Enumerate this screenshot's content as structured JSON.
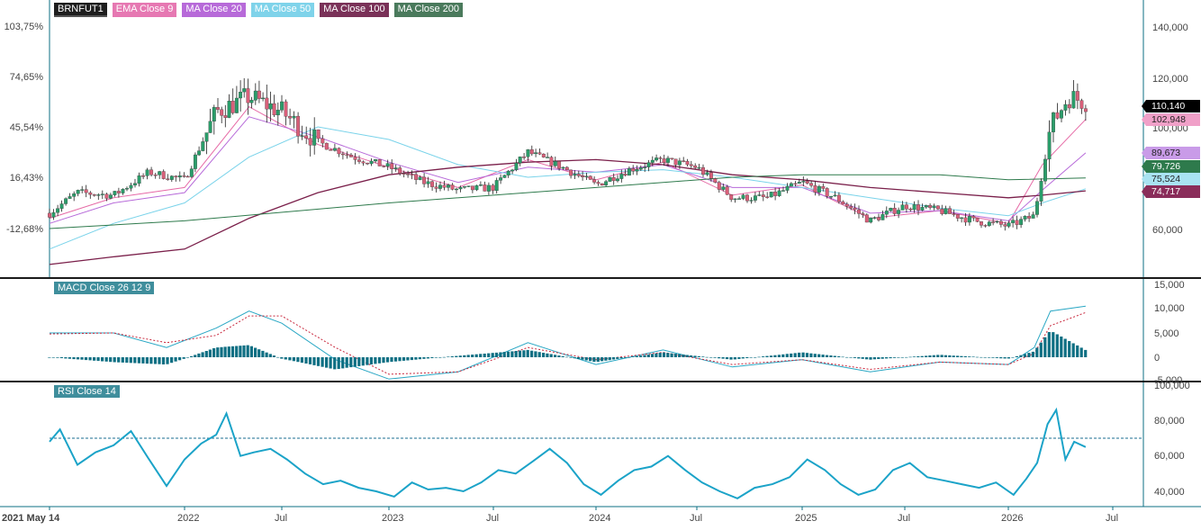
{
  "colors": {
    "up": "#2a9d6a",
    "down": "#d9607a",
    "wick": "#222222",
    "ema9": "#e66aa6",
    "ma20": "#b76ad9",
    "ma50": "#7ad3ea",
    "ma100": "#7a1f4a",
    "ma200": "#2e7a4c",
    "macd_line": "#29a7c4",
    "signal_line": "#c8273c",
    "histogram": "#0e6f83",
    "rsi_line": "#1ba3c8",
    "rsi_ref": "#1a6d92",
    "axis": "#0e6f83",
    "grid_text": "#444444"
  },
  "price_panel": {
    "legend": [
      {
        "label": "BRNFUT1",
        "color": "#1e1e1e"
      },
      {
        "label": "EMA  Close 9",
        "color": "#e678b2"
      },
      {
        "label": "MA  Close 20",
        "color": "#b76ad9"
      },
      {
        "label": "MA  Close 50",
        "color": "#7fd3ea"
      },
      {
        "label": "MA  Close 100",
        "color": "#7a3158"
      },
      {
        "label": "MA  Close 200",
        "color": "#4a7a5c"
      }
    ],
    "left_ticks": [
      "103,75%",
      "74,65%",
      "45,54%",
      "16,43%",
      "-12,68%"
    ],
    "right_ticks": [
      "140,000",
      "120,000",
      "100,000",
      "80,000",
      "60,000"
    ],
    "price_tags": [
      {
        "text": "110,140",
        "bg": "#000000",
        "fg": "#ffffff",
        "value": 110140
      },
      {
        "text": "102,948",
        "bg": "#f0a0c8",
        "fg": "#222222",
        "value": 102948
      },
      {
        "text": "89,673",
        "bg": "#c99be8",
        "fg": "#222222",
        "value": 89673
      },
      {
        "text": "79,726",
        "bg": "#2e7a4c",
        "fg": "#ffffff",
        "value": 79726
      },
      {
        "text": "75,524",
        "bg": "#a9e3f2",
        "fg": "#222222",
        "value": 75524
      },
      {
        "text": "74,717",
        "bg": "#8a2d5a",
        "fg": "#ffffff",
        "value": 74717
      }
    ]
  },
  "macd_panel": {
    "legend": "MACD  Close 26 12 9",
    "right_ticks": [
      "15,000",
      "10,000",
      "5,000",
      "0",
      "-5,000"
    ]
  },
  "rsi_panel": {
    "legend": "RSI  Close 14",
    "right_ticks": [
      "100,000",
      "80,000",
      "60,000",
      "40,000"
    ]
  },
  "x_axis": {
    "labels": [
      "2021 May 14",
      "2022",
      "Jul",
      "2023",
      "Jul",
      "2024",
      "Jul",
      "2025",
      "Jul",
      "2026",
      "Jul"
    ],
    "dates": [
      "2021-05-14",
      "2022-01-01",
      "2022-07-01",
      "2023-01-01",
      "2023-07-01",
      "2024-01-01",
      "2024-07-01",
      "2025-01-01",
      "2025-07-01",
      "2026-01-01",
      "2026-07-01"
    ]
  },
  "chart_data": [
    {
      "type": "line",
      "title": "BRNFUT1",
      "x_range": [
        "2021-05-14",
        "2026-07-25"
      ],
      "ylim": [
        40000,
        145000
      ],
      "y_tick_values": [
        60000,
        80000,
        100000,
        120000,
        140000
      ],
      "left_percent_ticks": [
        "103,75%",
        "74,65%",
        "45,54%",
        "16,43%",
        "-12,68%"
      ],
      "grid": false,
      "series": [
        {
          "name": "BRNFUT1",
          "style": "candlestick",
          "x": [
            "2021-05-14",
            "2021-07-01",
            "2021-09-01",
            "2021-11-01",
            "2022-01-01",
            "2022-03-01",
            "2022-05-01",
            "2022-07-01",
            "2022-09-01",
            "2022-11-01",
            "2023-01-01",
            "2023-03-01",
            "2023-05-01",
            "2023-07-01",
            "2023-09-01",
            "2023-11-01",
            "2024-01-01",
            "2024-03-01",
            "2024-05-01",
            "2024-07-01",
            "2024-09-01",
            "2024-11-01",
            "2025-01-01",
            "2025-03-01",
            "2025-05-01",
            "2025-07-01",
            "2025-09-01",
            "2025-11-01",
            "2026-01-01",
            "2026-02-15",
            "2026-03-15",
            "2026-04-15",
            "2026-05-15"
          ],
          "values": [
            66000,
            74000,
            73000,
            82000,
            79000,
            106000,
            112000,
            106000,
            94000,
            88000,
            84000,
            78000,
            75000,
            76000,
            90000,
            84000,
            77000,
            83000,
            87000,
            84000,
            72000,
            72000,
            78000,
            72000,
            63000,
            69000,
            67000,
            63000,
            61000,
            65000,
            100000,
            112000,
            110140
          ]
        },
        {
          "name": "EMA  Close 9",
          "x": [
            "2021-05-14",
            "2021-09-01",
            "2022-01-01",
            "2022-05-01",
            "2022-09-01",
            "2023-01-01",
            "2023-05-01",
            "2023-09-01",
            "2024-01-01",
            "2024-05-01",
            "2024-09-01",
            "2025-01-01",
            "2025-05-01",
            "2025-09-01",
            "2026-01-01",
            "2026-03-01",
            "2026-05-15"
          ],
          "values": [
            64000,
            72000,
            76000,
            108000,
            93000,
            84000,
            76000,
            87000,
            79000,
            86000,
            73000,
            77000,
            64000,
            67000,
            62000,
            85000,
            102948
          ]
        },
        {
          "name": "MA  Close 20",
          "x": [
            "2021-05-14",
            "2021-09-01",
            "2022-01-01",
            "2022-05-01",
            "2022-09-01",
            "2023-01-01",
            "2023-05-01",
            "2023-09-01",
            "2024-01-01",
            "2024-05-01",
            "2024-09-01",
            "2025-01-01",
            "2025-05-01",
            "2025-09-01",
            "2026-01-01",
            "2026-03-01",
            "2026-05-15"
          ],
          "values": [
            62000,
            70000,
            74000,
            104000,
            96000,
            86000,
            78000,
            84000,
            82000,
            85000,
            76000,
            76000,
            66000,
            67000,
            63000,
            75000,
            89673
          ]
        },
        {
          "name": "MA  Close 50",
          "x": [
            "2021-05-14",
            "2021-09-01",
            "2022-01-01",
            "2022-05-01",
            "2022-09-01",
            "2023-01-01",
            "2023-05-01",
            "2023-09-01",
            "2024-01-01",
            "2024-05-01",
            "2024-09-01",
            "2025-01-01",
            "2025-05-01",
            "2025-09-01",
            "2026-01-01",
            "2026-03-01",
            "2026-05-15"
          ],
          "values": [
            52000,
            62000,
            70000,
            88000,
            100000,
            95000,
            85000,
            80000,
            82000,
            83000,
            80000,
            76000,
            72000,
            68000,
            65000,
            70000,
            75524
          ]
        },
        {
          "name": "MA  Close 100",
          "x": [
            "2021-05-14",
            "2021-09-01",
            "2022-01-01",
            "2022-05-01",
            "2022-09-01",
            "2023-01-01",
            "2023-05-01",
            "2023-09-01",
            "2024-01-01",
            "2024-05-01",
            "2024-09-01",
            "2025-01-01",
            "2025-05-01",
            "2025-09-01",
            "2026-01-01",
            "2026-03-01",
            "2026-05-15"
          ],
          "values": null
        },
        {
          "name": "MA  Close 200",
          "x": [
            "2021-05-14",
            "2022-01-01",
            "2023-01-01",
            "2024-01-01",
            "2024-09-01",
            "2025-01-01",
            "2025-09-01",
            "2026-01-01",
            "2026-05-15"
          ],
          "values": [
            60000,
            63000,
            70000,
            76000,
            80000,
            81000,
            81000,
            79000,
            79726
          ]
        }
      ]
    },
    {
      "type": "line",
      "title": "MACD  Close 26 12 9",
      "ylim": [
        -5000,
        15000
      ],
      "y_tick_values": [
        -5000,
        0,
        5000,
        10000,
        15000
      ],
      "grid": false,
      "series": [
        {
          "name": "MACD",
          "x": [
            "2021-05-14",
            "2021-09-01",
            "2021-12-01",
            "2022-03-01",
            "2022-05-01",
            "2022-07-01",
            "2022-10-01",
            "2023-01-01",
            "2023-05-01",
            "2023-09-01",
            "2024-01-01",
            "2024-05-01",
            "2024-09-01",
            "2025-01-01",
            "2025-05-01",
            "2025-09-01",
            "2026-01-01",
            "2026-02-15",
            "2026-03-15",
            "2026-05-15"
          ],
          "values": [
            5000,
            5000,
            2000,
            6000,
            9500,
            7000,
            -500,
            -4500,
            -3000,
            3000,
            -1500,
            1500,
            -2000,
            -500,
            -3000,
            -1000,
            -1500,
            2000,
            9500,
            10500
          ]
        },
        {
          "name": "Signal",
          "x": [
            "2021-05-14",
            "2021-09-01",
            "2021-12-01",
            "2022-03-01",
            "2022-05-01",
            "2022-07-01",
            "2022-10-01",
            "2023-01-01",
            "2023-05-01",
            "2023-09-01",
            "2024-01-01",
            "2024-05-01",
            "2024-09-01",
            "2025-01-01",
            "2025-05-01",
            "2025-09-01",
            "2026-01-01",
            "2026-02-15",
            "2026-03-15",
            "2026-05-15"
          ],
          "values": [
            4800,
            5000,
            3000,
            4500,
            8500,
            8500,
            2000,
            -3500,
            -3000,
            2000,
            -500,
            1000,
            -1500,
            -500,
            -2500,
            -1000,
            -1500,
            800,
            6500,
            9200
          ]
        },
        {
          "name": "Histogram",
          "style": "bar",
          "x": [
            "2021-05-14",
            "2021-09-01",
            "2021-12-01",
            "2022-03-01",
            "2022-05-01",
            "2022-07-01",
            "2022-10-01",
            "2023-01-01",
            "2023-05-01",
            "2023-09-01",
            "2024-01-01",
            "2024-05-01",
            "2024-09-01",
            "2025-01-01",
            "2025-05-01",
            "2025-09-01",
            "2026-01-01",
            "2026-02-15",
            "2026-03-15",
            "2026-05-15"
          ],
          "values": [
            0,
            -1000,
            -1500,
            2000,
            2500,
            -300,
            -2500,
            -1000,
            300,
            1500,
            -1000,
            1000,
            -500,
            1000,
            -500,
            500,
            -300,
            1200,
            5500,
            1500
          ]
        }
      ]
    },
    {
      "type": "line",
      "title": "RSI  Close 14",
      "ylim": [
        32000,
        100000
      ],
      "y_tick_values": [
        40000,
        60000,
        80000,
        100000
      ],
      "reference_line": 70000,
      "grid": false,
      "series": [
        {
          "name": "RSI",
          "x": [
            "2021-05-14",
            "2021-06-01",
            "2021-07-01",
            "2021-08-01",
            "2021-09-01",
            "2021-10-01",
            "2021-11-01",
            "2021-12-01",
            "2022-01-01",
            "2022-02-01",
            "2022-03-01",
            "2022-03-20",
            "2022-04-15",
            "2022-05-10",
            "2022-06-10",
            "2022-07-10",
            "2022-08-10",
            "2022-09-10",
            "2022-10-10",
            "2022-11-10",
            "2022-12-10",
            "2023-01-10",
            "2023-02-10",
            "2023-03-10",
            "2023-04-10",
            "2023-05-10",
            "2023-06-10",
            "2023-07-10",
            "2023-08-10",
            "2023-09-10",
            "2023-10-10",
            "2023-11-10",
            "2023-12-10",
            "2024-01-10",
            "2024-02-10",
            "2024-03-10",
            "2024-04-10",
            "2024-05-10",
            "2024-06-10",
            "2024-07-10",
            "2024-08-10",
            "2024-09-10",
            "2024-10-10",
            "2024-11-10",
            "2024-12-10",
            "2025-01-10",
            "2025-02-10",
            "2025-03-10",
            "2025-04-10",
            "2025-05-10",
            "2025-06-10",
            "2025-07-10",
            "2025-08-10",
            "2025-09-10",
            "2025-10-10",
            "2025-11-10",
            "2025-12-10",
            "2026-01-10",
            "2026-02-01",
            "2026-02-20",
            "2026-03-10",
            "2026-03-25",
            "2026-04-10",
            "2026-04-25",
            "2026-05-15"
          ],
          "values": [
            68000,
            75000,
            55000,
            62000,
            66000,
            74000,
            58000,
            43000,
            58000,
            67000,
            72000,
            84000,
            60000,
            62000,
            64000,
            58000,
            50000,
            44000,
            46000,
            42000,
            40000,
            37000,
            45000,
            41000,
            42000,
            40000,
            45000,
            52000,
            50000,
            57000,
            64000,
            56000,
            44000,
            38000,
            46000,
            52000,
            54000,
            60000,
            52000,
            45000,
            40000,
            36000,
            42000,
            44000,
            48000,
            58000,
            52000,
            44000,
            38000,
            41000,
            52000,
            56000,
            48000,
            46000,
            44000,
            42000,
            45000,
            38000,
            47000,
            56000,
            78000,
            86000,
            58000,
            68000,
            65000
          ]
        }
      ]
    }
  ]
}
